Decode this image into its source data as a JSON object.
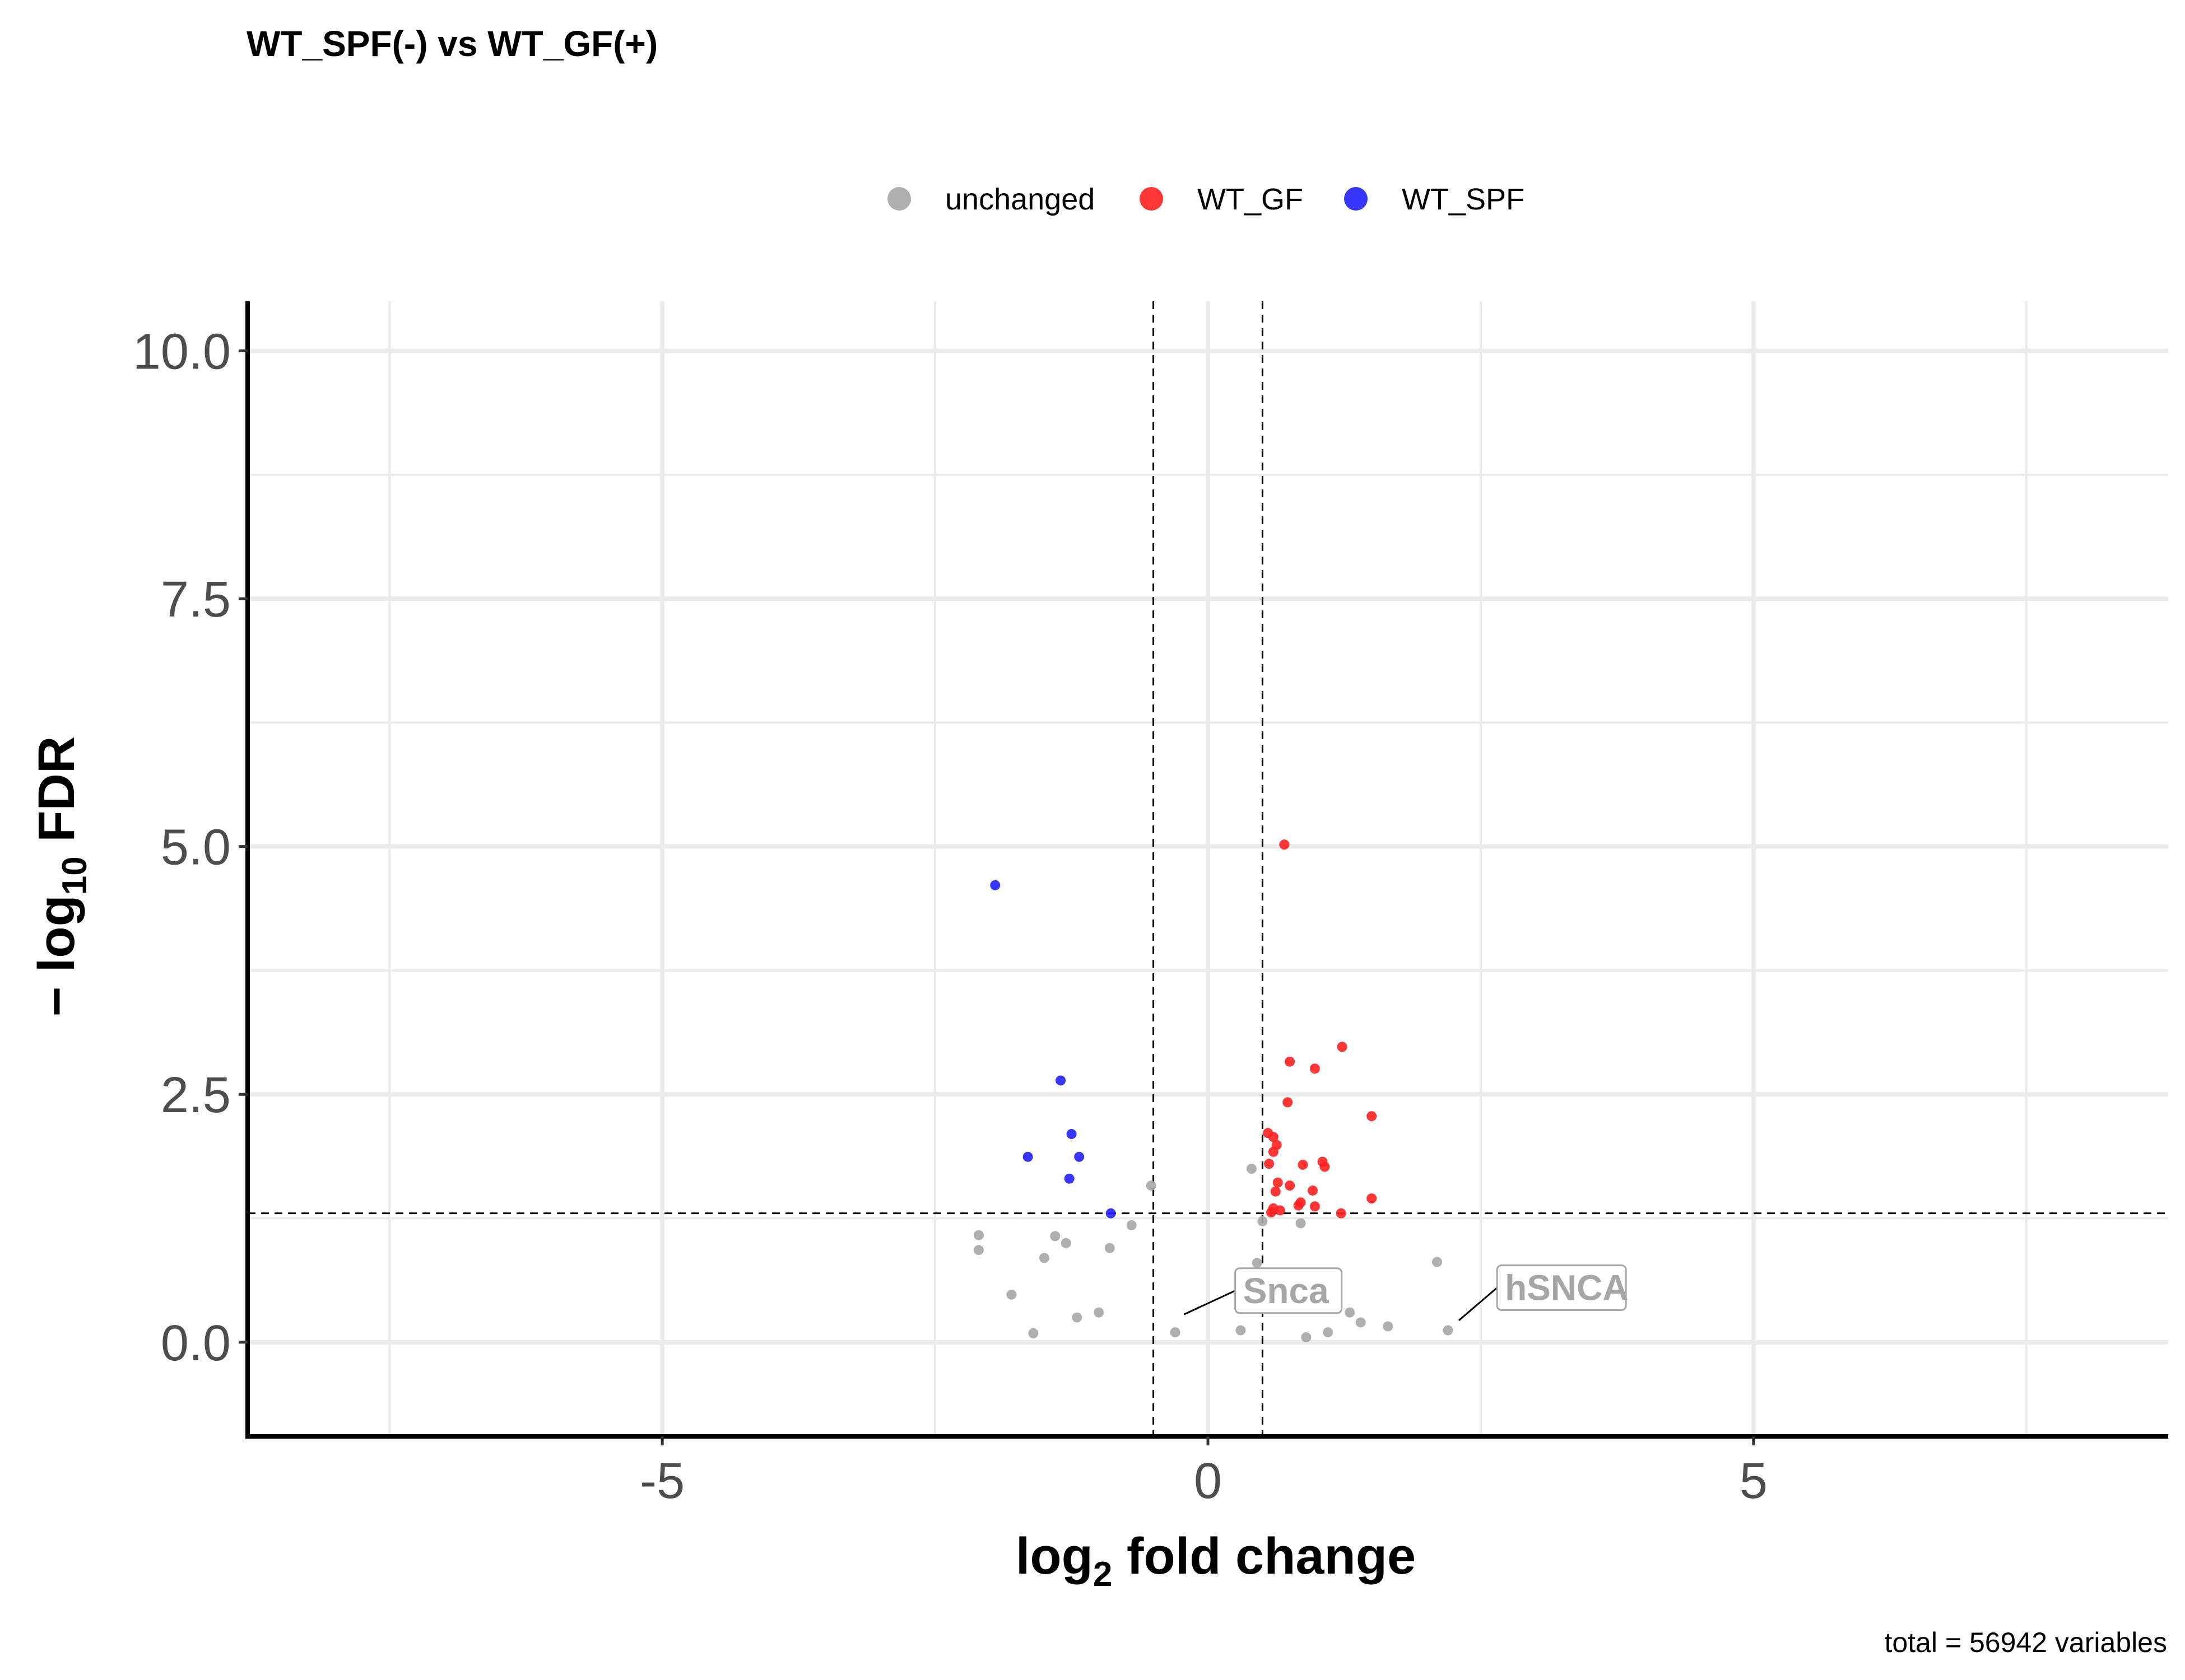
{
  "chart_data": {
    "type": "scatter",
    "title": "WT_SPF(-) vs WT_GF(+)",
    "xlabel_main": "log",
    "xlabel_sub": "2",
    "xlabel_rest": " fold change",
    "ylabel_pre": "− log",
    "ylabel_sub": "10",
    "ylabel_rest": " FDR",
    "caption": "total = 56942 variables",
    "xlim": [
      -8.8,
      8.8
    ],
    "ylim": [
      -0.95,
      10.5
    ],
    "x_ticks": [
      -5,
      0,
      5
    ],
    "x_tick_labels": [
      "-5",
      "0",
      "5"
    ],
    "x_minor": [
      -7.5,
      -2.5,
      2.5,
      7.5
    ],
    "y_ticks": [
      0,
      2.5,
      5,
      7.5,
      10
    ],
    "y_tick_labels": [
      "0.0",
      "2.5",
      "5.0",
      "7.5",
      "10.0"
    ],
    "y_minor": [
      1.25,
      3.75,
      6.25,
      8.75
    ],
    "grid": true,
    "legend_position": "top",
    "legend": [
      {
        "name": "unchanged",
        "color": "#a6a6a6"
      },
      {
        "name": "WT_GF",
        "color": "#ff2020"
      },
      {
        "name": "WT_SPF",
        "color": "#2020ff"
      }
    ],
    "cutoffs": {
      "x": [
        -0.5,
        0.5
      ],
      "y": 1.3
    },
    "series": [
      {
        "name": "WT_GF",
        "color": "#ff2020",
        "points": [
          [
            0.7,
            5.02
          ],
          [
            1.23,
            2.98
          ],
          [
            0.75,
            2.83
          ],
          [
            0.98,
            2.76
          ],
          [
            1.5,
            2.28
          ],
          [
            0.73,
            2.42
          ],
          [
            0.55,
            2.11
          ],
          [
            0.6,
            2.07
          ],
          [
            0.63,
            1.99
          ],
          [
            0.56,
            1.8
          ],
          [
            0.87,
            1.79
          ],
          [
            1.05,
            1.82
          ],
          [
            1.07,
            1.77
          ],
          [
            0.6,
            1.92
          ],
          [
            0.64,
            1.61
          ],
          [
            0.96,
            1.53
          ],
          [
            0.62,
            1.52
          ],
          [
            0.75,
            1.58
          ],
          [
            1.5,
            1.45
          ],
          [
            0.85,
            1.41
          ],
          [
            0.83,
            1.38
          ],
          [
            0.98,
            1.37
          ],
          [
            0.6,
            1.35
          ],
          [
            0.66,
            1.33
          ],
          [
            1.22,
            1.3
          ],
          [
            0.58,
            1.31
          ]
        ]
      },
      {
        "name": "WT_SPF",
        "color": "#2020ff",
        "points": [
          [
            -1.95,
            4.61
          ],
          [
            -1.35,
            2.64
          ],
          [
            -1.25,
            2.1
          ],
          [
            -1.65,
            1.87
          ],
          [
            -1.18,
            1.87
          ],
          [
            -1.27,
            1.65
          ],
          [
            -0.89,
            1.3
          ]
        ]
      },
      {
        "name": "unchanged",
        "color": "#a6a6a6",
        "points": [
          [
            -0.52,
            1.58
          ],
          [
            0.4,
            1.75
          ],
          [
            -2.1,
            1.08
          ],
          [
            -2.1,
            0.93
          ],
          [
            -1.4,
            1.07
          ],
          [
            -1.3,
            1.0
          ],
          [
            -1.5,
            0.85
          ],
          [
            -1.8,
            0.48
          ],
          [
            2.1,
            0.81
          ],
          [
            2.2,
            0.12
          ],
          [
            1.65,
            0.16
          ],
          [
            1.3,
            0.3
          ],
          [
            1.4,
            0.2
          ],
          [
            -0.7,
            1.18
          ],
          [
            -1.6,
            0.09
          ],
          [
            -1.2,
            0.25
          ],
          [
            -0.9,
            0.95
          ],
          [
            0.5,
            1.22
          ],
          [
            0.85,
            1.2
          ],
          [
            0.45,
            0.8
          ],
          [
            1.1,
            0.1
          ],
          [
            -1.0,
            0.3
          ],
          [
            0.9,
            0.05
          ],
          [
            -0.3,
            0.1
          ],
          [
            0.3,
            0.12
          ]
        ]
      }
    ],
    "point_labels": [
      {
        "text": "Snca",
        "x": -0.22,
        "y": 0.28,
        "lx": 0.25,
        "ly": 0.52
      },
      {
        "text": "hSNCA",
        "x": 2.3,
        "y": 0.22,
        "lx": 2.65,
        "ly": 0.55
      }
    ]
  }
}
